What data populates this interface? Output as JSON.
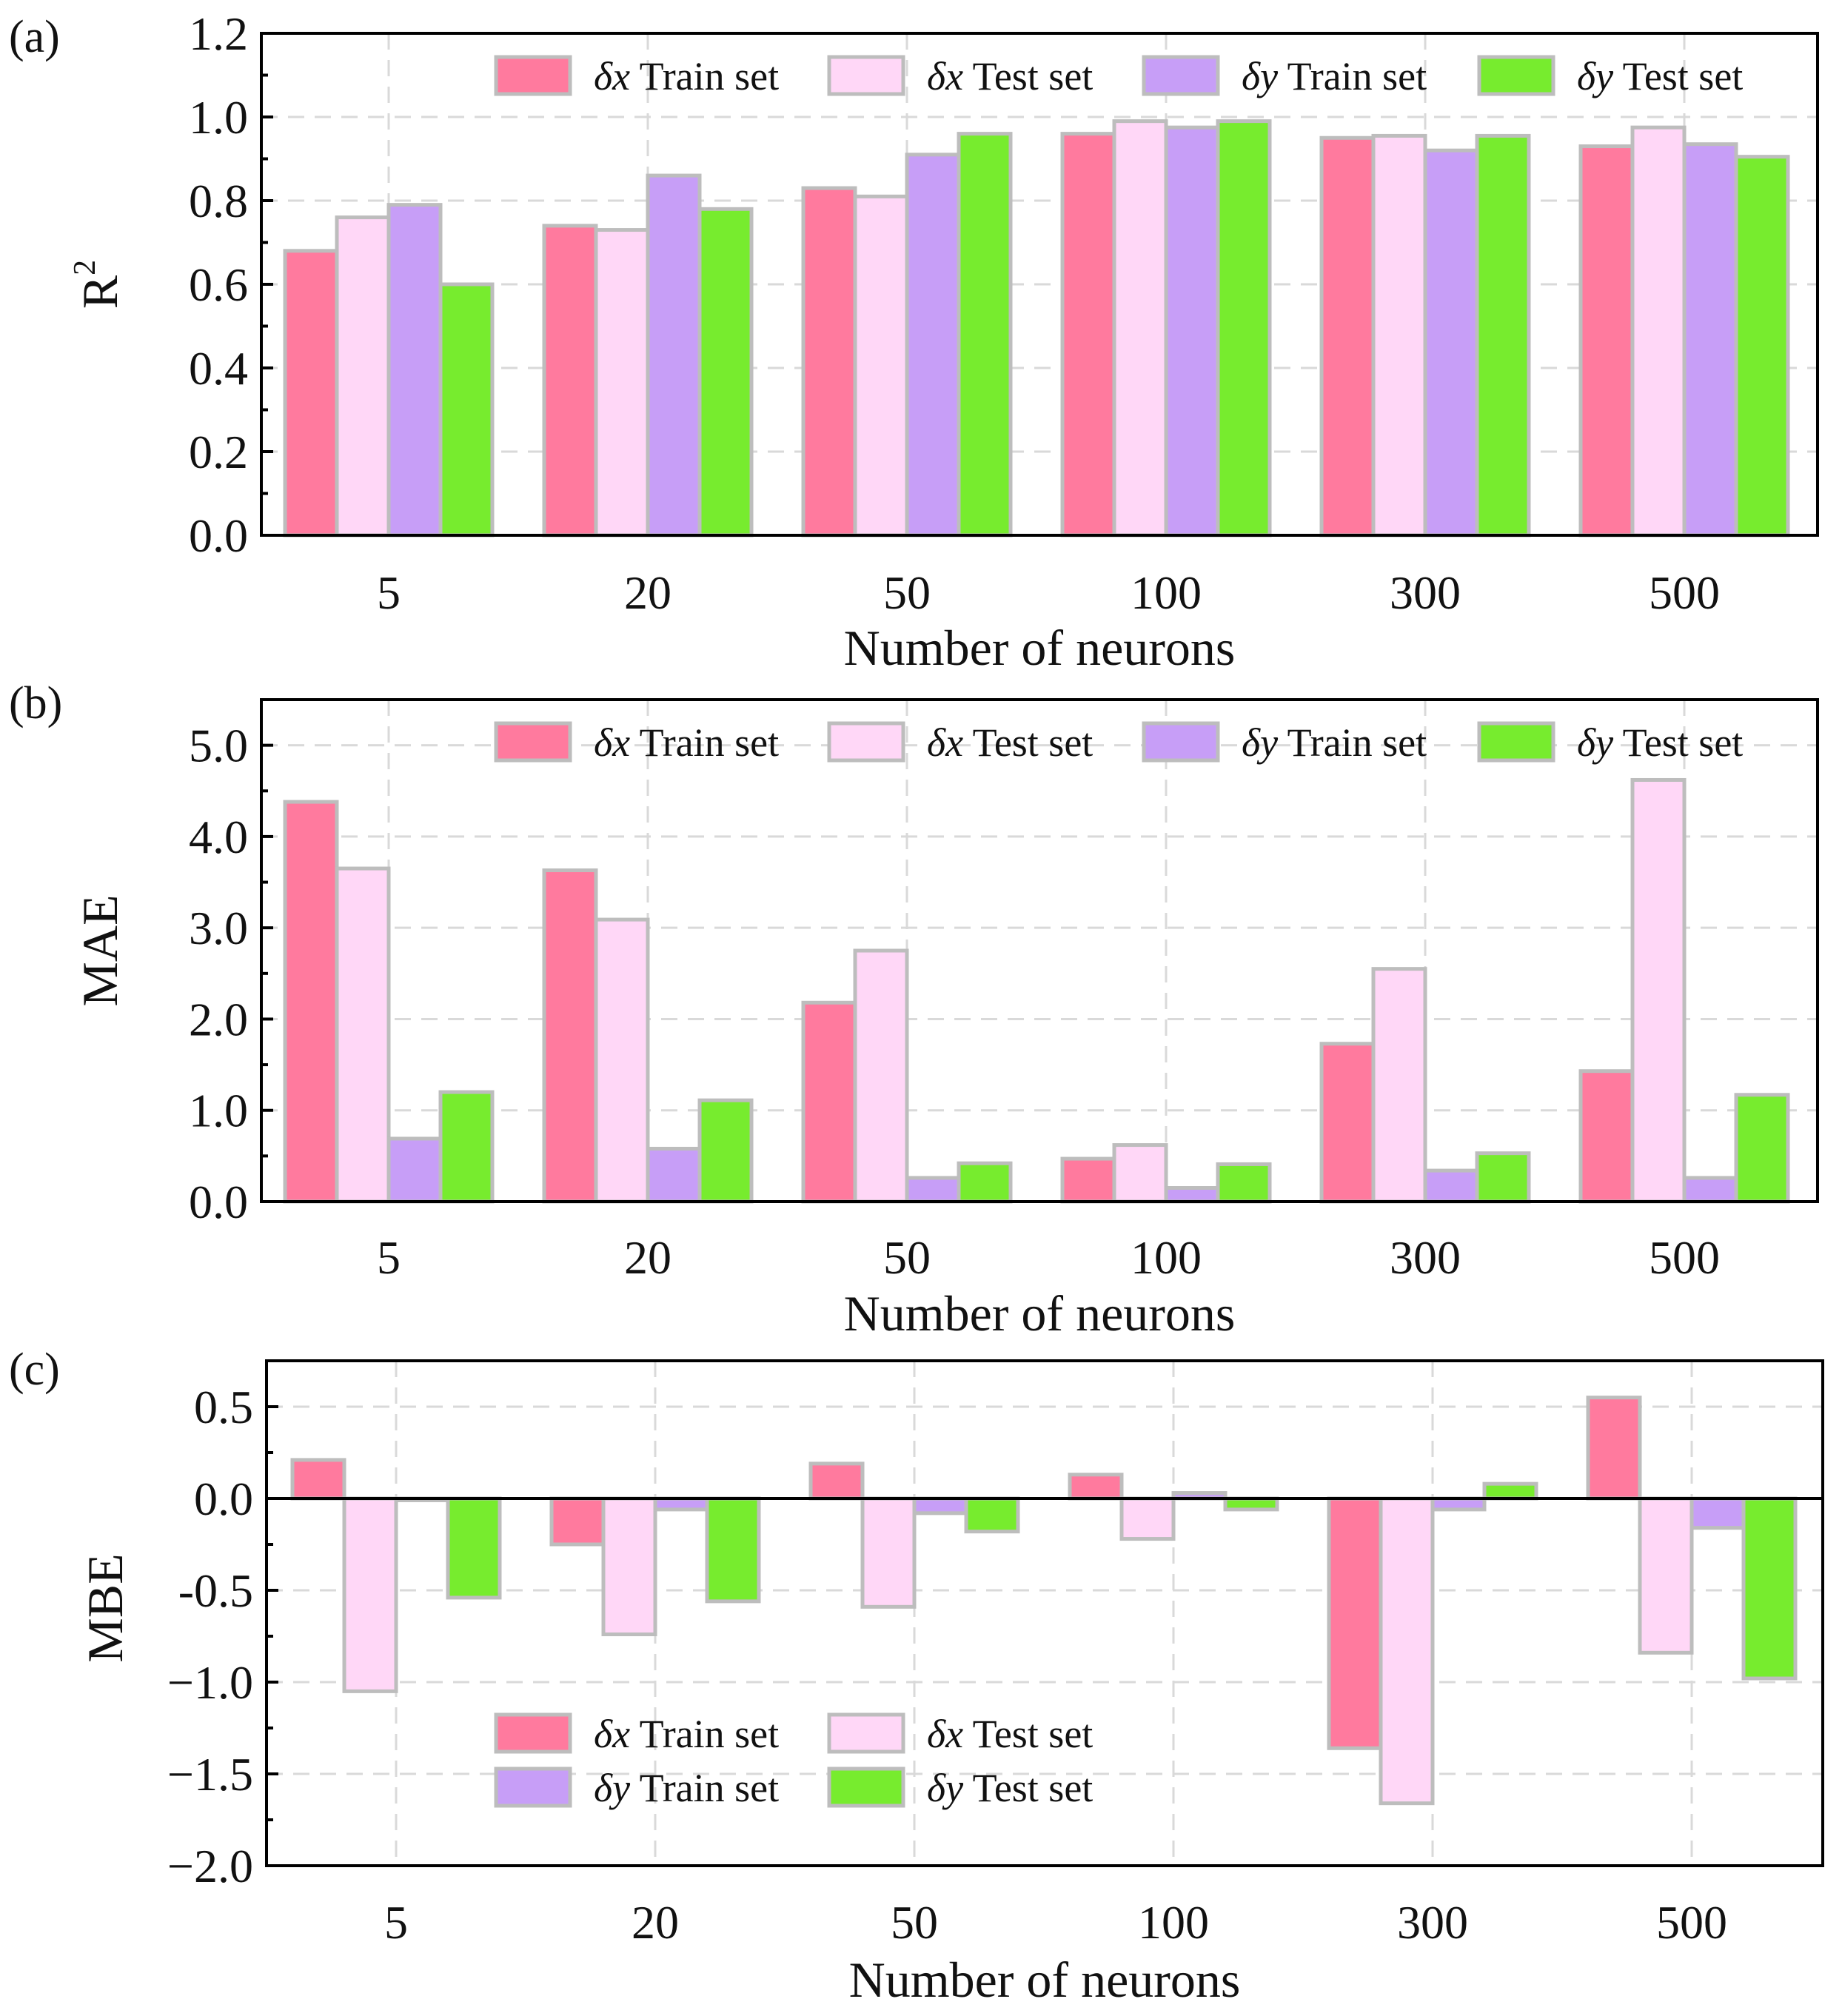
{
  "chart_data": [
    {
      "type": "bar",
      "panel_label": "(a)",
      "categories": [
        "5",
        "20",
        "50",
        "100",
        "300",
        "500"
      ],
      "series": [
        {
          "name": "δx Train set",
          "symbol": "δx",
          "label": "Train set",
          "color": "#FF7A9E",
          "values": [
            0.68,
            0.74,
            0.83,
            0.96,
            0.95,
            0.93
          ]
        },
        {
          "name": "δx Test set",
          "symbol": "δx",
          "label": "Test set",
          "color": "#FFD7F7",
          "values": [
            0.76,
            0.73,
            0.81,
            0.99,
            0.955,
            0.975
          ]
        },
        {
          "name": "δy Train set",
          "symbol": "δy",
          "label": "Train set",
          "color": "#C79EF7",
          "values": [
            0.79,
            0.86,
            0.91,
            0.975,
            0.92,
            0.935
          ]
        },
        {
          "name": "δy Test set",
          "symbol": "δy",
          "label": "Test set",
          "color": "#77EC2E",
          "values": [
            0.6,
            0.78,
            0.96,
            0.99,
            0.955,
            0.905
          ]
        }
      ],
      "xlabel": "Number of neurons",
      "ylabel_main": "R",
      "ylabel_sup": "2",
      "ylim": [
        0,
        1.2
      ],
      "yticks": [
        "0.0",
        "0.2",
        "0.4",
        "0.6",
        "0.8",
        "1.0",
        "1.2"
      ],
      "legend": "top, single row",
      "grid": true
    },
    {
      "type": "bar",
      "panel_label": "(b)",
      "categories": [
        "5",
        "20",
        "50",
        "100",
        "300",
        "500"
      ],
      "series": [
        {
          "name": "δx Train set",
          "symbol": "δx",
          "label": "Train set",
          "color": "#FF7A9E",
          "values": [
            4.38,
            3.63,
            2.18,
            0.47,
            1.73,
            1.43
          ]
        },
        {
          "name": "δx Test set",
          "symbol": "δx",
          "label": "Test set",
          "color": "#FFD7F7",
          "values": [
            3.65,
            3.09,
            2.75,
            0.62,
            2.55,
            4.62
          ]
        },
        {
          "name": "δy Train set",
          "symbol": "δy",
          "label": "Train set",
          "color": "#C79EF7",
          "values": [
            0.69,
            0.58,
            0.26,
            0.15,
            0.34,
            0.26
          ]
        },
        {
          "name": "δy Test set",
          "symbol": "δy",
          "label": "Test set",
          "color": "#77EC2E",
          "values": [
            1.2,
            1.11,
            0.42,
            0.41,
            0.53,
            1.17
          ]
        }
      ],
      "xlabel": "Number of neurons",
      "ylabel": "MAE",
      "ylim": [
        0,
        5.5
      ],
      "yticks": [
        "0.0",
        "1.0",
        "2.0",
        "3.0",
        "4.0",
        "5.0"
      ],
      "legend": "top, single row",
      "grid": true
    },
    {
      "type": "bar",
      "panel_label": "(c)",
      "categories": [
        "5",
        "20",
        "50",
        "100",
        "300",
        "500"
      ],
      "series": [
        {
          "name": "δx Train set",
          "symbol": "δx",
          "label": "Train set",
          "color": "#FF7A9E",
          "values": [
            0.21,
            -0.25,
            0.19,
            0.13,
            -1.36,
            0.55
          ]
        },
        {
          "name": "δx Test set",
          "symbol": "δx",
          "label": "Test set",
          "color": "#FFD7F7",
          "values": [
            -1.05,
            -0.74,
            -0.59,
            -0.22,
            -1.66,
            -0.84
          ]
        },
        {
          "name": "δy Train set",
          "symbol": "δy",
          "label": "Train set",
          "color": "#C79EF7",
          "values": [
            -0.01,
            -0.06,
            -0.08,
            0.03,
            -0.06,
            -0.16
          ]
        },
        {
          "name": "δy Test set",
          "symbol": "δy",
          "label": "Test set",
          "color": "#77EC2E",
          "values": [
            -0.54,
            -0.56,
            -0.18,
            -0.06,
            0.08,
            -0.98
          ]
        }
      ],
      "xlabel": "Number of neurons",
      "ylabel": "MBE",
      "ylim": [
        -2.0,
        0.75
      ],
      "yticks": [
        "−2.0",
        "−1.5",
        "−1.0",
        "-0.5",
        "0.0",
        "0.5"
      ],
      "legend": "lower-left, two rows",
      "grid": true
    }
  ]
}
